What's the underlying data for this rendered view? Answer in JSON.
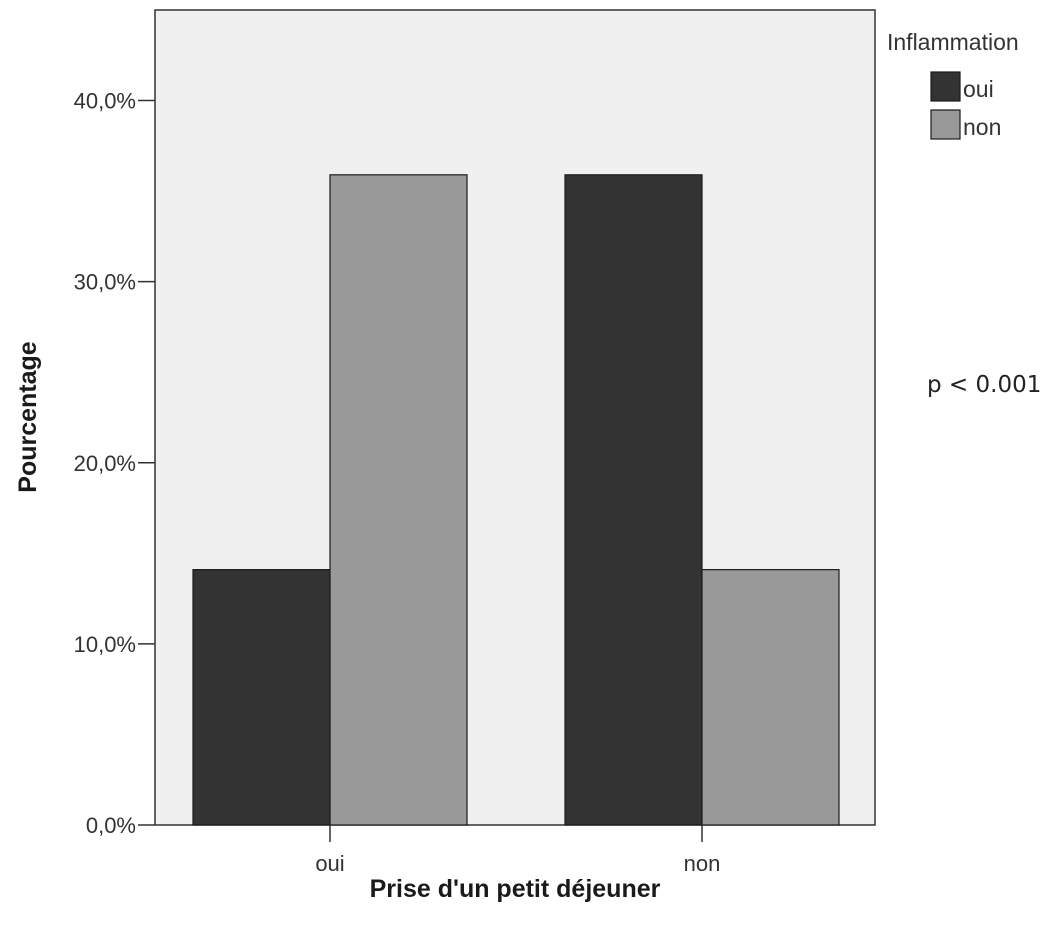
{
  "chart_data": {
    "type": "bar",
    "categories": [
      "oui",
      "non"
    ],
    "series": [
      {
        "name": "oui",
        "values": [
          14.1,
          35.9
        ],
        "color": "#333333"
      },
      {
        "name": "non",
        "values": [
          35.9,
          14.1
        ],
        "color": "#999999"
      }
    ],
    "xlabel": "Prise d'un petit déjeuner",
    "ylabel": "Pourcentage",
    "ylim": [
      0,
      45
    ],
    "yticks": [
      0,
      10,
      20,
      30,
      40
    ],
    "ytick_labels": [
      "0,0%",
      "10,0%",
      "20,0%",
      "30,0%",
      "40,0%"
    ],
    "legend_title": "Inflammation",
    "legend_position": "top-right outside",
    "grid": false,
    "plot_background": "#f0f0f0",
    "annotation": "p < 0.001"
  }
}
